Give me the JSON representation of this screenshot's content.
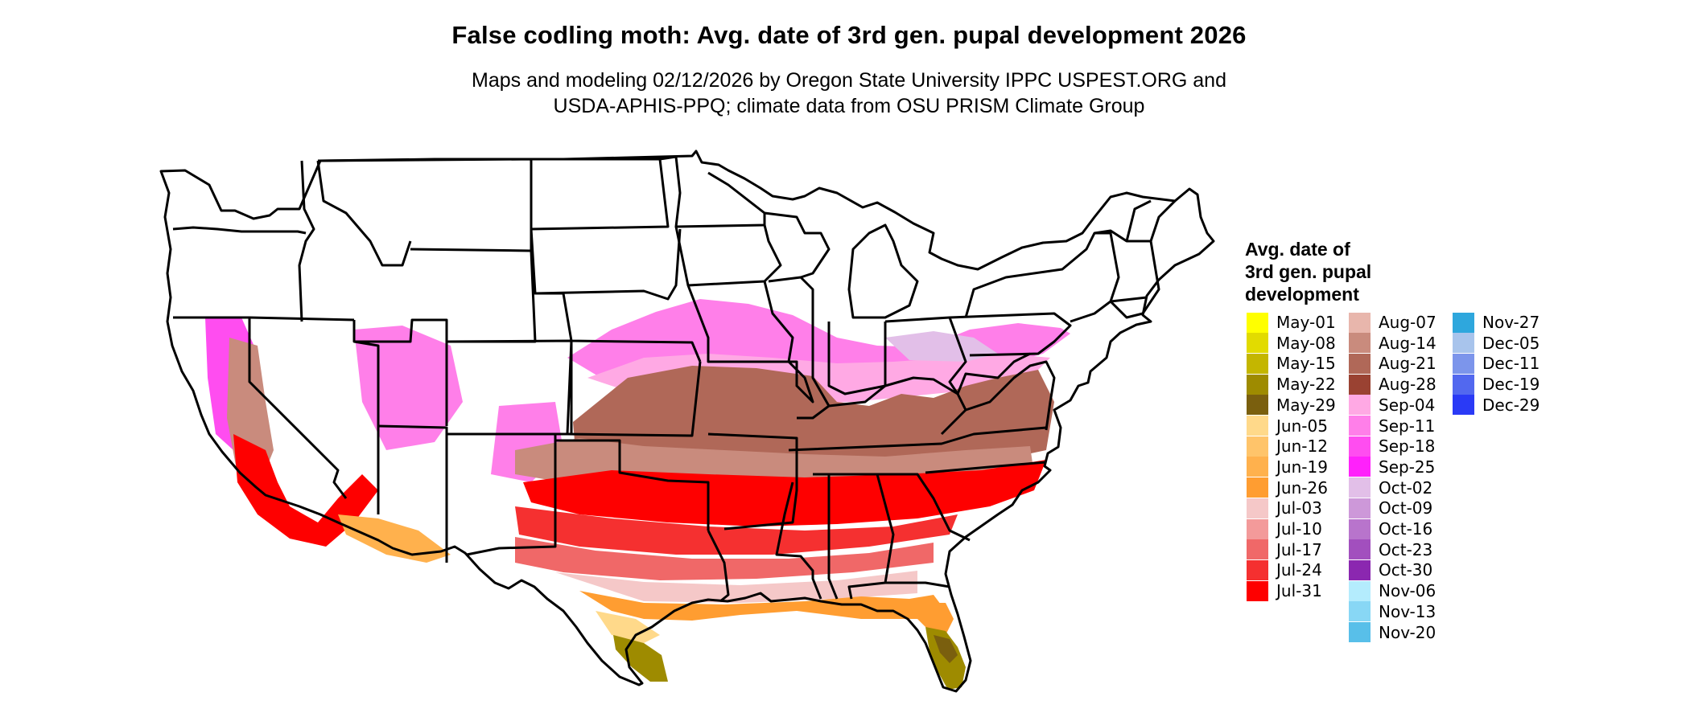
{
  "title": "False codling moth: Avg. date of 3rd gen. pupal development 2026",
  "subtitle": {
    "line1": "Maps and modeling 02/12/2026 by Oregon State University IPPC USPEST.ORG and",
    "line2": "USDA-APHIS-PPQ; climate data from OSU PRISM Climate Group"
  },
  "legend": {
    "title_lines": [
      "Avg. date of",
      "3rd gen. pupal",
      "development"
    ],
    "items": [
      {
        "label": "May-01",
        "color": "#ffff00"
      },
      {
        "label": "May-08",
        "color": "#e2db00"
      },
      {
        "label": "May-15",
        "color": "#c4b600"
      },
      {
        "label": "May-22",
        "color": "#9e8b00"
      },
      {
        "label": "May-29",
        "color": "#7a5f0e"
      },
      {
        "label": "Jun-05",
        "color": "#ffd98a"
      },
      {
        "label": "Jun-12",
        "color": "#ffc46a"
      },
      {
        "label": "Jun-19",
        "color": "#ffb14d"
      },
      {
        "label": "Jun-26",
        "color": "#ff9d31"
      },
      {
        "label": "Jul-03",
        "color": "#f5c8c8"
      },
      {
        "label": "Jul-10",
        "color": "#f39a9a"
      },
      {
        "label": "Jul-17",
        "color": "#f06868"
      },
      {
        "label": "Jul-24",
        "color": "#f53030"
      },
      {
        "label": "Jul-31",
        "color": "#fe0000"
      },
      {
        "label": "Aug-07",
        "color": "#e8b6ac"
      },
      {
        "label": "Aug-14",
        "color": "#c98b7d"
      },
      {
        "label": "Aug-21",
        "color": "#b06858"
      },
      {
        "label": "Aug-28",
        "color": "#9a4232"
      },
      {
        "label": "Sep-04",
        "color": "#ffa9e4"
      },
      {
        "label": "Sep-11",
        "color": "#ff7fe9"
      },
      {
        "label": "Sep-18",
        "color": "#ff4df0"
      },
      {
        "label": "Sep-25",
        "color": "#ff21fb"
      },
      {
        "label": "Oct-02",
        "color": "#e2bfe8"
      },
      {
        "label": "Oct-09",
        "color": "#cd98d9"
      },
      {
        "label": "Oct-16",
        "color": "#b874cc"
      },
      {
        "label": "Oct-23",
        "color": "#a24fbe"
      },
      {
        "label": "Oct-30",
        "color": "#8b27b0"
      },
      {
        "label": "Nov-06",
        "color": "#b4ecfd"
      },
      {
        "label": "Nov-13",
        "color": "#88d7f5"
      },
      {
        "label": "Nov-20",
        "color": "#58bfe9"
      },
      {
        "label": "Nov-27",
        "color": "#2ea7dd"
      },
      {
        "label": "Dec-05",
        "color": "#a8c4ec"
      },
      {
        "label": "Dec-11",
        "color": "#7c95eb"
      },
      {
        "label": "Dec-19",
        "color": "#5268ef"
      },
      {
        "label": "Dec-29",
        "color": "#2a3af6"
      }
    ]
  }
}
